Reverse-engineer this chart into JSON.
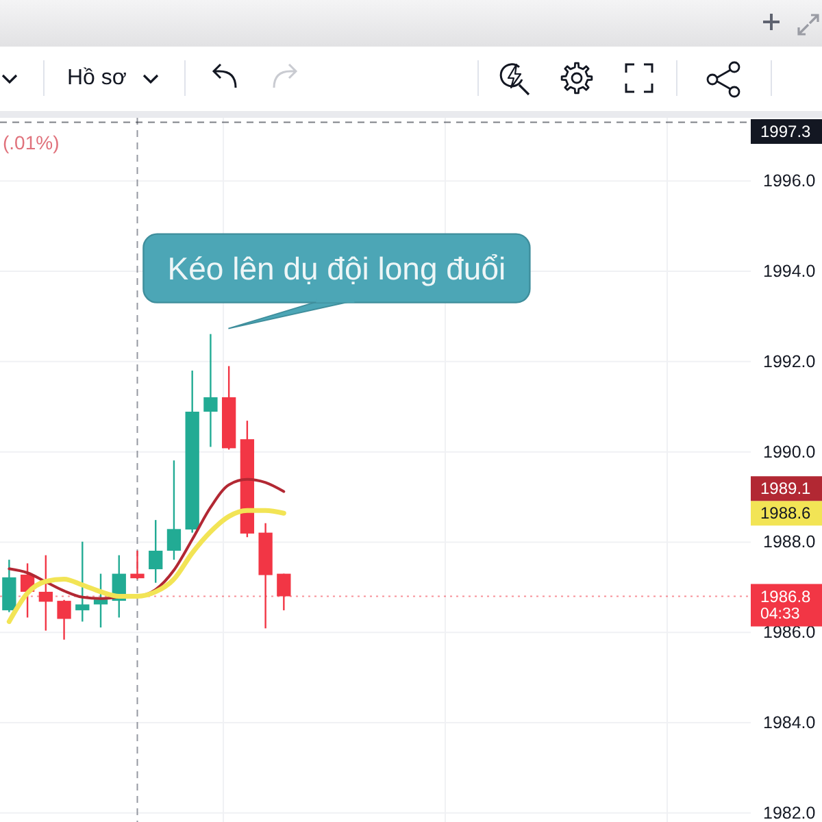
{
  "chart_data": {
    "type": "candlestick",
    "categories": [
      null,
      null,
      null,
      null,
      null,
      null,
      null,
      null,
      null,
      null,
      null,
      null,
      null,
      null,
      null,
      null,
      null,
      null,
      null,
      null,
      null,
      null,
      null,
      null,
      null,
      null,
      null,
      null,
      null,
      null,
      null,
      null,
      null,
      null,
      null,
      null,
      null,
      null,
      null,
      null,
      null
    ],
    "ohlc": [
      [
        1986.49,
        1987.61,
        1986.45,
        1987.22
      ],
      [
        1987.28,
        1987.53,
        1986.33,
        1986.9
      ],
      [
        1986.9,
        1987.71,
        1986.04,
        1986.68
      ],
      [
        1986.7,
        1986.72,
        1985.84,
        1986.3
      ],
      [
        1986.49,
        1988.01,
        1986.24,
        1986.62
      ],
      [
        1986.62,
        1987.3,
        1986.11,
        1986.73
      ],
      [
        1986.7,
        1987.71,
        1986.33,
        1987.3
      ],
      [
        1987.3,
        1987.81,
        1987.18,
        1987.2
      ],
      [
        1987.4,
        1988.49,
        1987.1,
        1987.81
      ],
      [
        1987.81,
        1989.81,
        1987.61,
        1988.29
      ],
      [
        1988.28,
        1991.8,
        1988.21,
        1990.89
      ],
      [
        1990.89,
        1992.61,
        1990.11,
        1991.21
      ],
      [
        1991.21,
        1991.9,
        1990.05,
        1990.08
      ],
      [
        1990.28,
        1990.69,
        1988.11,
        1988.19
      ],
      [
        1988.21,
        1988.42,
        1986.09,
        1987.27
      ],
      [
        1987.3,
        1987.3,
        1986.49,
        1986.8
      ],
      null,
      null,
      null,
      null,
      null,
      null,
      null,
      null,
      null,
      null,
      null,
      null,
      null,
      null,
      null,
      null,
      null,
      null,
      null,
      null,
      null,
      null,
      null,
      null,
      null
    ],
    "colors": [
      "#22ab94",
      "#f23645",
      "#f23645",
      "#f23645",
      "#22ab94",
      "#22ab94",
      "#22ab94",
      "#f23645",
      "#22ab94",
      "#22ab94",
      "#22ab94",
      "#22ab94",
      "#f23645",
      "#f23645",
      "#f23645",
      "#f23645",
      null,
      null,
      null,
      null,
      null,
      null,
      null,
      null,
      null,
      null,
      null,
      null,
      null,
      null,
      null,
      null,
      null,
      null,
      null,
      null,
      null,
      null,
      null,
      null,
      null
    ],
    "series": [
      {
        "type": "line",
        "color": "#b22833",
        "values": [
          1987.41,
          1987.32,
          1987.12,
          1986.92,
          1986.78,
          1986.75,
          1986.78,
          1986.8,
          1986.95,
          1987.38,
          1988.06,
          1988.77,
          1989.27,
          1989.39,
          1989.32,
          1989.12,
          null,
          null,
          null,
          null,
          null,
          null,
          null,
          null,
          null,
          null,
          null,
          null,
          null,
          null,
          null,
          null,
          null,
          null,
          null,
          null,
          null,
          null,
          null,
          null,
          null
        ]
      },
      {
        "type": "line",
        "color": "#f2e455",
        "values": [
          1986.24,
          1986.87,
          1987.13,
          1987.18,
          1987.05,
          1986.9,
          1986.8,
          1986.8,
          1986.9,
          1987.18,
          1987.76,
          1988.23,
          1988.57,
          1988.7,
          1988.7,
          1988.64,
          null,
          null,
          null,
          null,
          null,
          null,
          null,
          null,
          null,
          null,
          null,
          null,
          null,
          null,
          null,
          null,
          null,
          null,
          null,
          null,
          null,
          null,
          null,
          null,
          null
        ]
      }
    ],
    "ylim": [
      1981.8,
      1997.4
    ],
    "yticks": [
      {
        "value": 1982,
        "label": "1982.0"
      },
      {
        "value": 1984,
        "label": "1984.0"
      },
      {
        "value": 1986,
        "label": "1986.0"
      },
      {
        "value": 1988,
        "label": "1988.0"
      },
      {
        "value": 1990,
        "label": "1990.0"
      },
      {
        "value": 1992,
        "label": "1992.0"
      },
      {
        "value": 1994,
        "label": "1994.0"
      },
      {
        "value": 1996,
        "label": "1996.0"
      }
    ],
    "grid": true,
    "ref_lines": [
      {
        "axis": "y",
        "value": 1997.3,
        "label": "1997.3",
        "color": "#131722",
        "line_style": "dashed"
      },
      {
        "axis": "y",
        "value": 1986.8,
        "label": "1986.8",
        "color": "#f23645",
        "line_style": "dotted"
      }
    ],
    "annotations": [
      "Kéo lên dụ đội long đuổi",
      "(.01%)",
      "Hồ sơ",
      "04:33",
      "1989.1",
      "1988.6"
    ]
  }
}
